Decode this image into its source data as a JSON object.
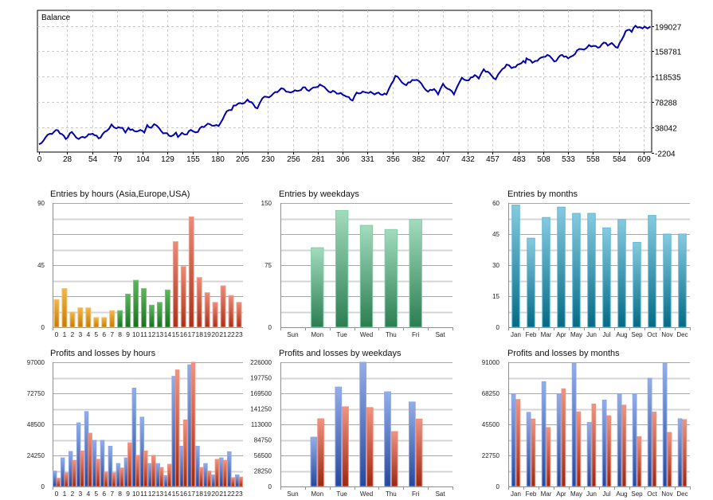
{
  "balance": {
    "title": "Balance",
    "type": "line",
    "color": "#0000b0",
    "y_ticks": [
      "-2204",
      "38042",
      "78288",
      "118535",
      "158781",
      "199027"
    ],
    "y_tick_values": [
      -2204,
      38042,
      78288,
      118535,
      158781,
      199027
    ],
    "x_ticks": [
      "0",
      "28",
      "54",
      "79",
      "104",
      "129",
      "155",
      "180",
      "205",
      "230",
      "256",
      "281",
      "306",
      "331",
      "356",
      "382",
      "407",
      "432",
      "457",
      "483",
      "508",
      "533",
      "558",
      "584",
      "609"
    ],
    "x_tick_values": [
      0,
      28,
      54,
      79,
      104,
      129,
      155,
      180,
      205,
      230,
      256,
      281,
      306,
      331,
      356,
      382,
      407,
      432,
      457,
      483,
      508,
      533,
      558,
      584,
      609
    ]
  },
  "chart_data": [
    {
      "type": "line",
      "title": "Balance",
      "x": [
        0,
        11,
        19,
        27,
        33,
        40,
        54,
        60,
        68,
        73,
        78,
        84,
        87,
        90,
        96,
        102,
        106,
        109,
        113,
        116,
        123,
        133,
        138,
        140,
        144,
        149,
        153,
        160,
        164,
        172,
        181,
        185,
        189,
        194,
        196,
        207,
        210,
        220,
        225,
        234,
        244,
        249,
        260,
        268,
        272,
        283,
        292,
        298,
        308,
        316,
        320,
        330,
        350,
        355,
        359,
        370,
        376,
        383,
        392,
        398,
        402,
        407,
        418,
        421,
        426,
        433,
        439,
        443,
        448,
        454,
        460,
        467,
        471,
        476,
        484,
        488,
        490,
        491,
        497,
        500,
        506,
        512,
        519,
        527,
        533,
        538,
        542,
        549,
        554,
        563,
        567,
        571,
        573,
        577,
        583,
        587,
        591,
        595,
        597,
        601,
        605,
        608,
        610,
        613,
        616
      ],
      "y": [
        10800,
        27600,
        33000,
        19200,
        30500,
        19200,
        27600,
        20200,
        31800,
        42300,
        36000,
        37000,
        29400,
        37000,
        31800,
        33600,
        29400,
        41300,
        37000,
        42900,
        31800,
        23400,
        29400,
        22300,
        29000,
        26500,
        33600,
        30500,
        38800,
        42900,
        40000,
        50500,
        63100,
        65200,
        72300,
        76500,
        82000,
        68000,
        84000,
        88000,
        99800,
        94400,
        95600,
        101500,
        95600,
        105700,
        94400,
        94400,
        88000,
        80500,
        93000,
        93000,
        90100,
        106900,
        119500,
        104800,
        113100,
        111100,
        94400,
        98600,
        90100,
        106900,
        90100,
        101500,
        116600,
        112400,
        120800,
        115300,
        130000,
        123700,
        114100,
        130800,
        137500,
        132000,
        138300,
        143300,
        140400,
        147500,
        140400,
        143300,
        148800,
        153000,
        142500,
        153000,
        147500,
        151700,
        160100,
        161300,
        168500,
        164300,
        169700,
        171800,
        167600,
        171800,
        164300,
        176900,
        190700,
        192800,
        189500,
        199200,
        197100,
        195000,
        197900,
        195000,
        197900
      ],
      "xlim": [
        0,
        620
      ],
      "ylim": [
        -2204,
        199027
      ],
      "grid": true
    },
    {
      "type": "bar",
      "title": "Entries by hours (Asia,Europe,USA)",
      "categories": [
        "0",
        "1",
        "2",
        "3",
        "4",
        "5",
        "6",
        "7",
        "8",
        "9",
        "10",
        "11",
        "12",
        "13",
        "14",
        "15",
        "16",
        "17",
        "18",
        "19",
        "20",
        "21",
        "22",
        "23"
      ],
      "values": [
        20,
        28,
        11,
        14,
        14,
        7,
        7,
        12,
        12,
        24,
        34,
        28,
        16,
        18,
        27,
        62,
        44,
        80,
        36,
        25,
        18,
        30,
        23,
        18
      ],
      "sessions": [
        "asia",
        "asia",
        "asia",
        "asia",
        "asia",
        "asia",
        "asia",
        "asia",
        "europe",
        "europe",
        "europe",
        "europe",
        "europe",
        "europe",
        "europe",
        "usa",
        "usa",
        "usa",
        "usa",
        "usa",
        "usa",
        "usa",
        "usa",
        "usa"
      ],
      "y_ticks": [
        "0",
        "45",
        "90"
      ],
      "ylim": [
        0,
        90
      ]
    },
    {
      "type": "bar",
      "title": "Entries by weekdays",
      "categories": [
        "Sun",
        "Mon",
        "Tue",
        "Wed",
        "Thu",
        "Fri",
        "Sat"
      ],
      "values": [
        0,
        96,
        141,
        123,
        118,
        130,
        0
      ],
      "y_ticks": [
        "0",
        "75",
        "150"
      ],
      "ylim": [
        0,
        150
      ]
    },
    {
      "type": "bar",
      "title": "Entries by months",
      "categories": [
        "Jan",
        "Feb",
        "Mar",
        "Apr",
        "May",
        "Jun",
        "Jul",
        "Aug",
        "Sep",
        "Oct",
        "Nov",
        "Dec"
      ],
      "values": [
        59,
        43,
        53,
        58,
        55,
        55,
        48,
        52,
        41,
        54,
        45,
        45
      ],
      "y_ticks": [
        "0",
        "15",
        "30",
        "45",
        "60"
      ],
      "ylim": [
        0,
        60
      ]
    },
    {
      "type": "bar",
      "title": "Profits and losses by hours",
      "categories": [
        "0",
        "1",
        "2",
        "3",
        "4",
        "5",
        "6",
        "7",
        "8",
        "9",
        "10",
        "11",
        "12",
        "13",
        "14",
        "15",
        "16",
        "17",
        "18",
        "19",
        "20",
        "21",
        "22",
        "23"
      ],
      "series": [
        {
          "name": "Profits",
          "values": [
            12000,
            22300,
            27300,
            49700,
            58500,
            36000,
            36000,
            31400,
            17900,
            22300,
            76800,
            54100,
            17900,
            17900,
            8500,
            86000,
            31400,
            95000,
            31400,
            17900,
            9000,
            22300,
            27100,
            9000
          ]
        },
        {
          "name": "Losses",
          "values": [
            6400,
            10600,
            20400,
            27700,
            41600,
            21200,
            11200,
            10600,
            14400,
            34100,
            24300,
            27700,
            24300,
            14800,
            17300,
            91000,
            52000,
            97000,
            14800,
            12000,
            21200,
            20400,
            6900,
            7300
          ]
        }
      ],
      "y_ticks": [
        "0",
        "24250",
        "48500",
        "72750",
        "97000"
      ],
      "ylim": [
        0,
        97000
      ]
    },
    {
      "type": "bar",
      "title": "Profits and losses by weekdays",
      "categories": [
        "Sun",
        "Mon",
        "Tue",
        "Wed",
        "Thu",
        "Fri",
        "Sat"
      ],
      "series": [
        {
          "name": "Profits",
          "values": [
            0,
            89700,
            180900,
            226000,
            172200,
            153700,
            0
          ]
        },
        {
          "name": "Losses",
          "values": [
            0,
            123200,
            145000,
            143600,
            99900,
            122700,
            0
          ]
        }
      ],
      "y_ticks": [
        "0",
        "28250",
        "56500",
        "84750",
        "113000",
        "141250",
        "169500",
        "197750",
        "226000"
      ],
      "ylim": [
        0,
        226000
      ]
    },
    {
      "type": "bar",
      "title": "Profits and losses by months",
      "categories": [
        "Jan",
        "Feb",
        "Mar",
        "Apr",
        "May",
        "Jun",
        "Jul",
        "Aug",
        "Sep",
        "Oct",
        "Nov",
        "Dec"
      ],
      "series": [
        {
          "name": "Profits",
          "values": [
            67800,
            54300,
            76800,
            67800,
            90400,
            46900,
            63300,
            67800,
            67800,
            79300,
            90400,
            49600
          ]
        },
        {
          "name": "Losses",
          "values": [
            63700,
            49400,
            43200,
            71500,
            54700,
            60400,
            51800,
            59600,
            36500,
            54500,
            39600,
            49000
          ]
        }
      ],
      "y_ticks": [
        "0",
        "22750",
        "45500",
        "68250",
        "91000"
      ],
      "ylim": [
        0,
        91000
      ]
    }
  ]
}
